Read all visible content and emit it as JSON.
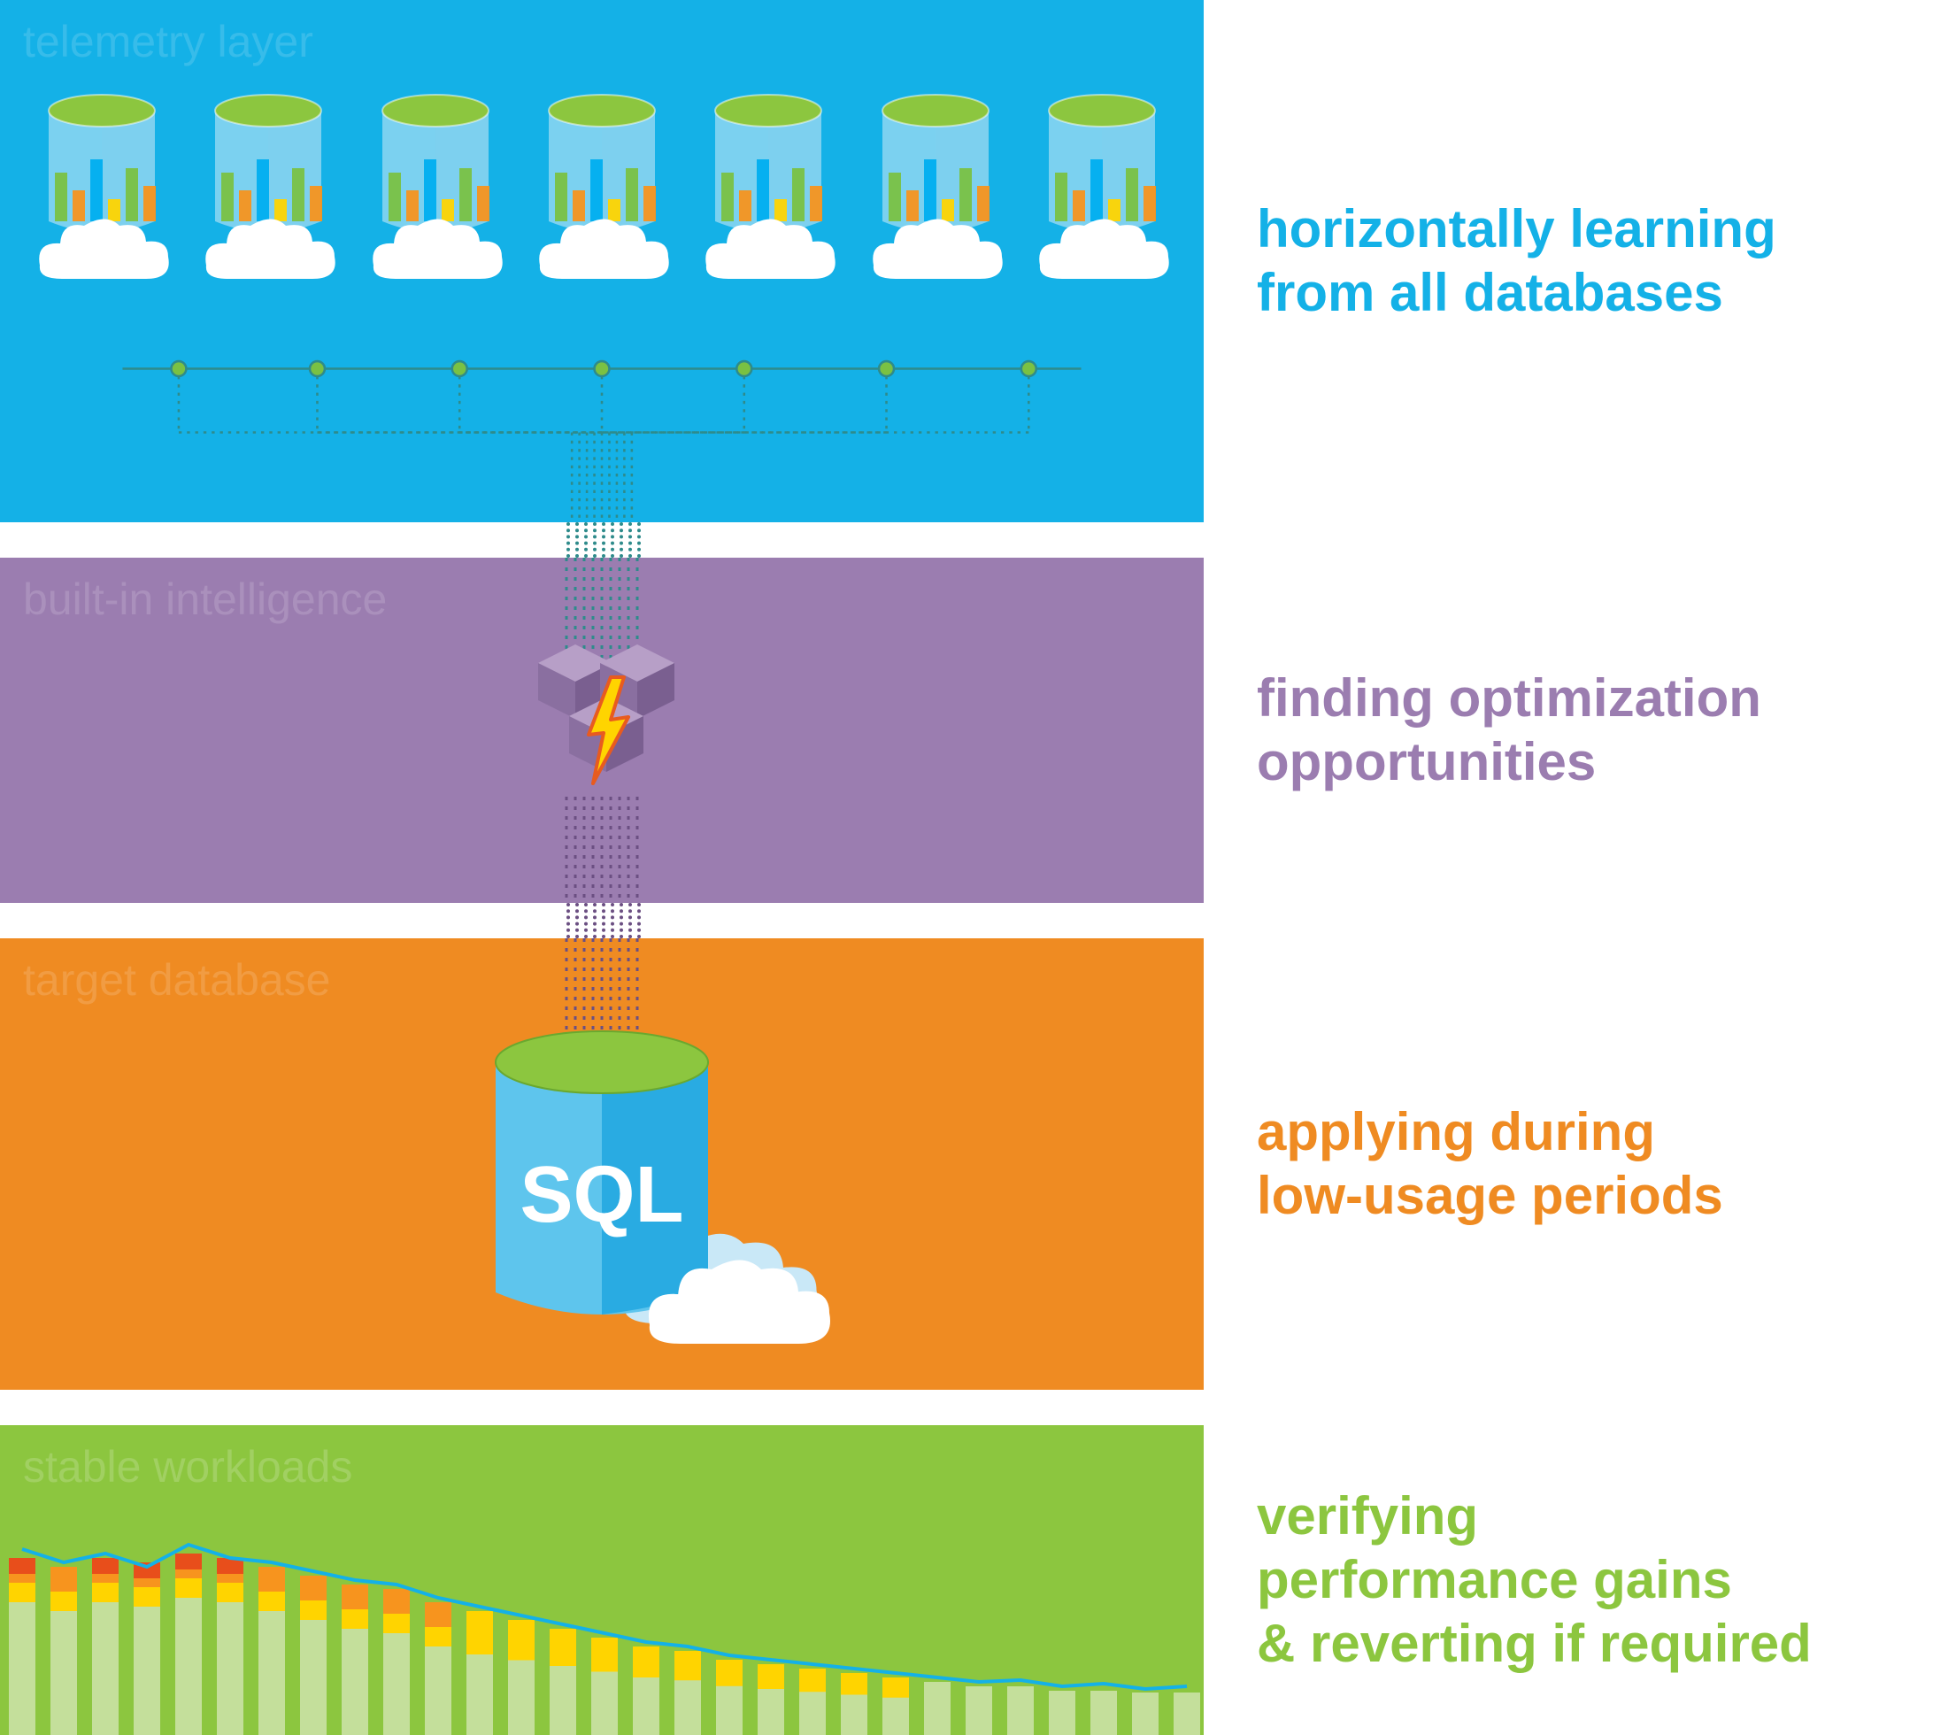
{
  "panels": {
    "p1": {
      "bg_color": "#14b1e7",
      "label": "telemetry layer",
      "side_line1": "horizontally learning",
      "side_line2": "from all databases",
      "side_color": "#14b1e7",
      "db_count": 7,
      "db_colors": {
        "cyl_top": "#8cc63f",
        "cyl_body_light": "#bfe6f7",
        "cyl_body_dark": "#7fd0ee",
        "cloud": "#ffffff",
        "bars": [
          "#7ac143",
          "#f7941e",
          "#00aeef",
          "#ffd400",
          "#7ac143",
          "#f7941e"
        ],
        "bar_heights": [
          55,
          35,
          70,
          25,
          60,
          40
        ]
      },
      "net_color": "#2e8b8b",
      "net_node_fill": "#7ac143"
    },
    "p2": {
      "bg_color": "#9b7db0",
      "label": "built-in intelligence",
      "side_line1": "finding optimization",
      "side_line2": "opportunities",
      "side_color": "#9b7db0",
      "cube_top": "#b79fc7",
      "cube_left": "#8a6fa0",
      "cube_right": "#7a5f90",
      "bolt_fill": "#ffd400",
      "bolt_stroke": "#e85b1f"
    },
    "p3": {
      "bg_color": "#ef8b22",
      "label": "target database",
      "side_line1": "applying during",
      "side_line2": "low-usage periods",
      "side_color": "#ef8b22",
      "db_body_light": "#5ec5ed",
      "db_body_dark": "#29abe2",
      "db_top": "#8cc63f",
      "db_label": "SQL",
      "cloud_light": "#ffffff",
      "cloud_shadow": "#c9e8f7"
    },
    "p4": {
      "bg_color": "#8cc63f",
      "label": "stable workloads",
      "side_line1": "verifying",
      "side_line2": "performance gains",
      "side_line3": "& reverting if required",
      "side_color": "#8cc63f",
      "line_color": "#14b1e7",
      "bar_base": "#c4df9b",
      "bar_mid": "#ffd400",
      "bar_hot": "#f7941e",
      "bar_red": "#e84e1b",
      "bars_h": [
        200,
        190,
        200,
        195,
        205,
        200,
        190,
        180,
        170,
        165,
        150,
        140,
        130,
        120,
        110,
        100,
        95,
        85,
        80,
        75,
        70,
        65,
        60,
        55,
        55,
        50,
        50,
        48,
        48
      ],
      "line_pts": [
        210,
        195,
        205,
        190,
        215,
        200,
        195,
        185,
        175,
        170,
        155,
        145,
        135,
        125,
        115,
        105,
        100,
        90,
        85,
        80,
        75,
        70,
        65,
        60,
        62,
        55,
        58,
        52,
        55
      ]
    }
  },
  "dotted": {
    "color_p1": "#2e8b8b",
    "color_p2": "#6b4f82",
    "count": 9
  }
}
